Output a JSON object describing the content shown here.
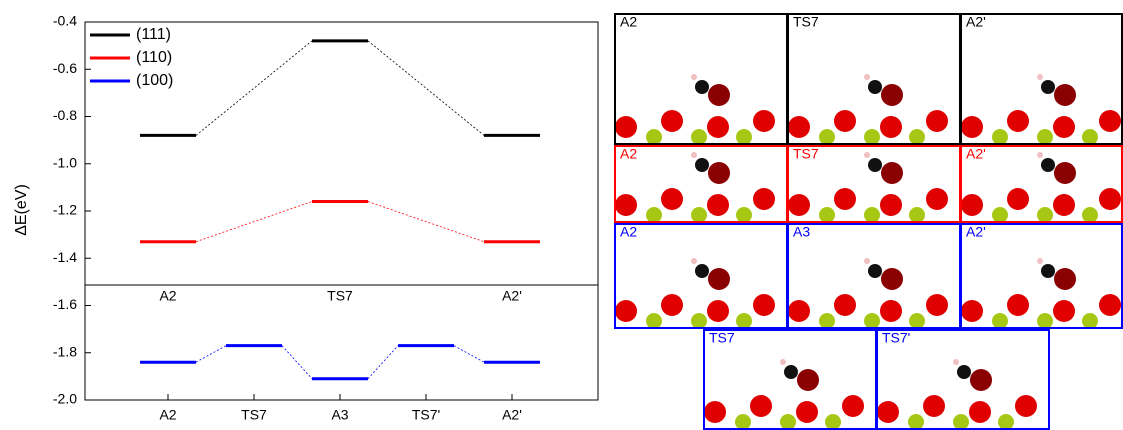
{
  "chart_data": {
    "type": "line",
    "y_label": "ΔE(eV)",
    "categories": [
      "A2",
      "TS7",
      "A3",
      "TS7'",
      "A2'"
    ],
    "upper_categories": [
      "A2",
      null,
      "TS7",
      null,
      "A2'"
    ],
    "series": [
      {
        "name": "(111)",
        "color": "#000000",
        "values": [
          -0.88,
          null,
          -0.48,
          null,
          -0.88
        ]
      },
      {
        "name": "(110)",
        "color": "#ff0000",
        "values": [
          -1.33,
          null,
          -1.16,
          null,
          -1.33
        ]
      },
      {
        "name": "(100)",
        "color": "#0000ff",
        "values": [
          -1.84,
          -1.77,
          -1.91,
          -1.77,
          -1.84
        ]
      }
    ],
    "ylim": [
      -2.0,
      -0.4
    ],
    "yticks": [
      -0.4,
      -0.6,
      -0.8,
      {
        "value": -1.0,
        "label": "-1.0"
      },
      -1.2,
      -1.4,
      -1.6,
      -1.8,
      {
        "value": -2.0,
        "label": "-2.0"
      }
    ],
    "legend": "upper left"
  },
  "panels": [
    {
      "color": "#000000",
      "labels": [
        "A2",
        "TS7",
        "A2'"
      ]
    },
    {
      "color": "#ff0000",
      "labels": [
        "A2",
        "TS7",
        "A2'"
      ]
    },
    {
      "color": "#0000ff",
      "labels": [
        "A2",
        "A3",
        "A2'"
      ]
    },
    {
      "color": "#0000ff",
      "labels": [
        "TS7",
        "TS7'"
      ]
    }
  ]
}
